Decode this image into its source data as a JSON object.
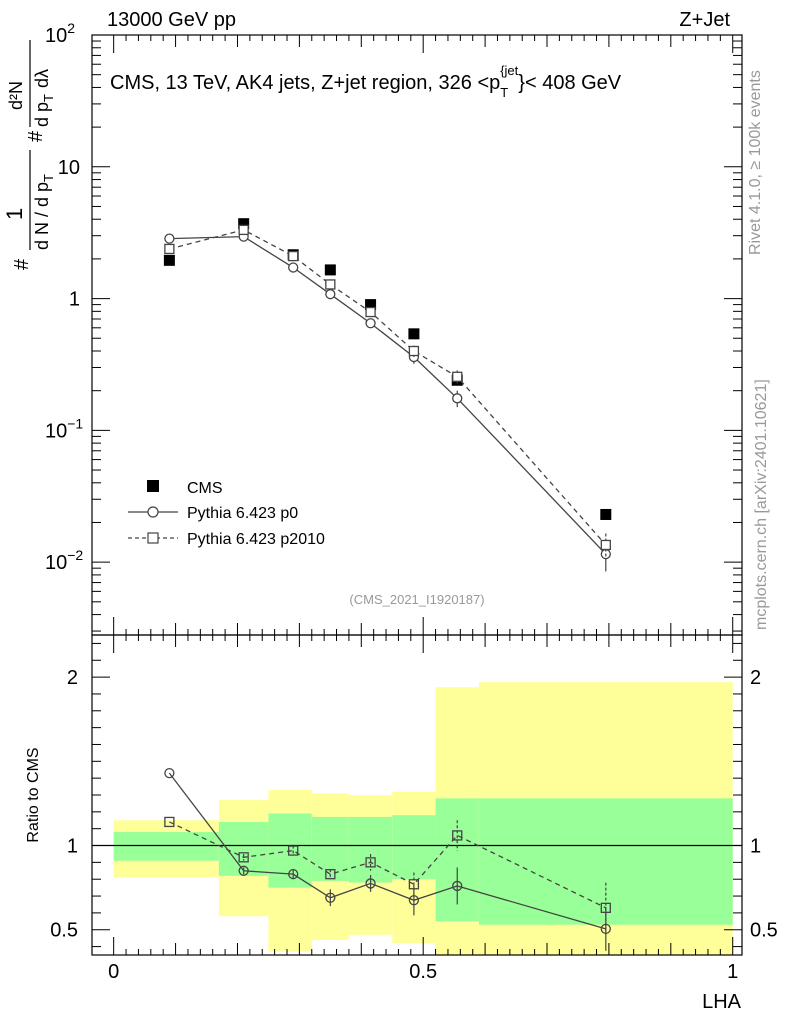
{
  "header": {
    "left": "13000 GeV pp",
    "right": "Z+Jet"
  },
  "side_text": {
    "rivet": "Rivet 4.1.0, ≥ 100k events",
    "mcplots": "mcplots.cern.ch [arXiv:2401.10621]"
  },
  "chart_data": [
    {
      "type": "scatter",
      "panel": "main",
      "title": "CMS, 13 TeV, AK4 jets, Z+jet region, 326 <p_T^{jet}< 408 GeV",
      "title_parts": {
        "prefix": "CMS, 13 TeV, AK4 jets, Z+jet region, 326 <p",
        "sub": "T",
        "sup": "{jet",
        "suffix": "}< 408 GeV"
      },
      "analysis_tag": "(CMS_2021_I1920187)",
      "ylabel": "1/dN/dpT  d²N/dpT dλ",
      "ylabel_parts": [
        "#",
        "1",
        "d N / d p",
        "T",
        "#",
        "d²N",
        "d p",
        "T",
        "dλ"
      ],
      "yscale": "log",
      "ylim": [
        0.0028,
        100
      ],
      "xlim": [
        -0.035,
        1.015
      ],
      "y_ticks": [
        {
          "value": 0.01,
          "base": "10",
          "exp": "−2"
        },
        {
          "value": 0.1,
          "base": "10",
          "exp": "−1"
        },
        {
          "value": 1,
          "base": "1",
          "exp": ""
        },
        {
          "value": 10,
          "base": "10",
          "exp": ""
        },
        {
          "value": 100,
          "base": "10",
          "exp": "2"
        }
      ],
      "legend": {
        "placement": "bottom-left",
        "entries": [
          "CMS",
          "Pythia 6.423 p0",
          "Pythia 6.423 p2010"
        ]
      },
      "series": [
        {
          "name": "CMS",
          "style": "filled-square",
          "color": "#000000",
          "x": [
            0.09,
            0.21,
            0.29,
            0.35,
            0.415,
            0.485,
            0.555,
            0.795
          ],
          "y": [
            1.95,
            3.7,
            2.15,
            1.65,
            0.9,
            0.54,
            0.24,
            0.023
          ]
        },
        {
          "name": "Pythia 6.423 p0",
          "style": "open-circle-solid",
          "color": "#444444",
          "x": [
            0.09,
            0.21,
            0.29,
            0.35,
            0.415,
            0.485,
            0.555,
            0.795
          ],
          "y": [
            2.85,
            2.95,
            1.72,
            1.08,
            0.65,
            0.36,
            0.175,
            0.0115
          ],
          "err": [
            0.05,
            0.06,
            0.04,
            0.03,
            0.02,
            0.04,
            0.025,
            0.003
          ]
        },
        {
          "name": "Pythia 6.423 p2010",
          "style": "open-square-dashed",
          "color": "#444444",
          "x": [
            0.09,
            0.21,
            0.29,
            0.35,
            0.415,
            0.485,
            0.555,
            0.795
          ],
          "y": [
            2.38,
            3.32,
            2.1,
            1.28,
            0.79,
            0.4,
            0.255,
            0.0135
          ],
          "err": [
            0.04,
            0.06,
            0.04,
            0.03,
            0.02,
            0.04,
            0.03,
            0.003
          ]
        }
      ]
    },
    {
      "type": "scatter",
      "panel": "ratio",
      "ylabel": "Ratio to CMS",
      "xlabel": "LHA",
      "ylim": [
        0.35,
        2.25
      ],
      "xlim": [
        -0.035,
        1.015
      ],
      "x_ticks": [
        {
          "value": 0,
          "label": "0"
        },
        {
          "value": 0.5,
          "label": "0.5"
        },
        {
          "value": 1,
          "label": "1"
        }
      ],
      "y_ticks": [
        {
          "value": 0.5,
          "label": "0.5"
        },
        {
          "value": 1,
          "label": "1"
        },
        {
          "value": 2,
          "label": "2"
        }
      ],
      "bands": {
        "bins": [
          {
            "x0": 0,
            "x1": 0.17,
            "inner": [
              0.91,
              1.08
            ],
            "outer": [
              0.81,
              1.15
            ]
          },
          {
            "x0": 0.17,
            "x1": 0.25,
            "inner": [
              0.82,
              1.14
            ],
            "outer": [
              0.58,
              1.27
            ]
          },
          {
            "x0": 0.25,
            "x1": 0.32,
            "inner": [
              0.75,
              1.19
            ],
            "outer": [
              0.37,
              1.33
            ]
          },
          {
            "x0": 0.32,
            "x1": 0.38,
            "inner": [
              0.79,
              1.17
            ],
            "outer": [
              0.44,
              1.31
            ]
          },
          {
            "x0": 0.38,
            "x1": 0.45,
            "inner": [
              0.78,
              1.17
            ],
            "outer": [
              0.47,
              1.3
            ]
          },
          {
            "x0": 0.45,
            "x1": 0.52,
            "inner": [
              0.8,
              1.18
            ],
            "outer": [
              0.42,
              1.32
            ]
          },
          {
            "x0": 0.52,
            "x1": 0.59,
            "inner": [
              0.55,
              1.28
            ],
            "outer": [
              0.35,
              1.94
            ]
          },
          {
            "x0": 0.59,
            "x1": 1.0,
            "inner": [
              0.53,
              1.28
            ],
            "outer": [
              0.35,
              1.97
            ]
          }
        ],
        "colors": {
          "inner": "#99ff99",
          "outer": "#ffff99"
        }
      },
      "series": [
        {
          "name": "Pythia 6.423 p0",
          "x": [
            0.09,
            0.21,
            0.29,
            0.35,
            0.415,
            0.485,
            0.555,
            0.795
          ],
          "y": [
            1.43,
            0.85,
            0.83,
            0.69,
            0.775,
            0.675,
            0.76,
            0.505
          ],
          "err": [
            0.0,
            0.02,
            0.03,
            0.05,
            0.05,
            0.09,
            0.11,
            0.13
          ]
        },
        {
          "name": "Pythia 6.423 p2010",
          "x": [
            0.09,
            0.21,
            0.29,
            0.35,
            0.415,
            0.485,
            0.555,
            0.795
          ],
          "y": [
            1.14,
            0.93,
            0.97,
            0.83,
            0.9,
            0.77,
            1.06,
            0.63
          ],
          "err": [
            0.0,
            0.02,
            0.03,
            0.03,
            0.05,
            0.07,
            0.09,
            0.15
          ]
        }
      ]
    }
  ]
}
